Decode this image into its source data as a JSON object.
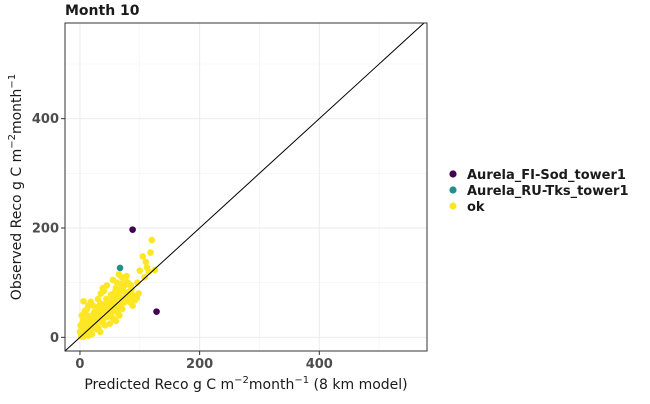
{
  "chart_data": {
    "type": "scatter",
    "title": "Month 10",
    "xlabel": {
      "prefix": "Predicted Reco g C m",
      "sup1": "−2",
      "mid": "month",
      "sup2": "−1",
      "suffix": " (8 km model)"
    },
    "ylabel": {
      "prefix": "Observed Reco g C m",
      "sup1": "−2",
      "mid": "month",
      "sup2": "−1",
      "suffix": ""
    },
    "xlim": [
      -25,
      580
    ],
    "ylim": [
      -25,
      575
    ],
    "xticks": [
      0,
      200,
      400
    ],
    "yticks": [
      0,
      200,
      400
    ],
    "grid": true,
    "legend_position": "right",
    "reference_line": "1:1",
    "colors": {
      "Aurela_FI-Sod_tower1": "#440154",
      "Aurela_RU-Tks_tower1": "#21908C",
      "ok": "#FDE725"
    },
    "series": [
      {
        "name": "Aurela_FI-Sod_tower1",
        "points": [
          [
            88,
            197
          ],
          [
            128,
            47
          ]
        ]
      },
      {
        "name": "Aurela_RU-Tks_tower1",
        "points": [
          [
            67,
            127
          ]
        ]
      },
      {
        "name": "ok",
        "points": [
          [
            2,
            2
          ],
          [
            4,
            6
          ],
          [
            5,
            1
          ],
          [
            6,
            10
          ],
          [
            8,
            4
          ],
          [
            3,
            14
          ],
          [
            10,
            8
          ],
          [
            12,
            15
          ],
          [
            14,
            3
          ],
          [
            15,
            20
          ],
          [
            7,
            18
          ],
          [
            9,
            25
          ],
          [
            16,
            12
          ],
          [
            18,
            28
          ],
          [
            20,
            6
          ],
          [
            22,
            18
          ],
          [
            24,
            32
          ],
          [
            5,
            30
          ],
          [
            11,
            35
          ],
          [
            13,
            22
          ],
          [
            25,
            40
          ],
          [
            28,
            15
          ],
          [
            30,
            45
          ],
          [
            26,
            26
          ],
          [
            32,
            36
          ],
          [
            34,
            10
          ],
          [
            36,
            50
          ],
          [
            38,
            30
          ],
          [
            40,
            60
          ],
          [
            42,
            22
          ],
          [
            44,
            48
          ],
          [
            46,
            55
          ],
          [
            48,
            38
          ],
          [
            50,
            62
          ],
          [
            52,
            42
          ],
          [
            54,
            70
          ],
          [
            56,
            50
          ],
          [
            58,
            66
          ],
          [
            60,
            30
          ],
          [
            62,
            78
          ],
          [
            64,
            56
          ],
          [
            66,
            82
          ],
          [
            68,
            60
          ],
          [
            70,
            90
          ],
          [
            72,
            72
          ],
          [
            74,
            64
          ],
          [
            76,
            96
          ],
          [
            78,
            80
          ],
          [
            80,
            100
          ],
          [
            82,
            70
          ],
          [
            84,
            64
          ],
          [
            86,
            88
          ],
          [
            88,
            58
          ],
          [
            90,
            76
          ],
          [
            6,
            66
          ],
          [
            8,
            48
          ],
          [
            18,
            65
          ],
          [
            20,
            40
          ],
          [
            30,
            70
          ],
          [
            35,
            80
          ],
          [
            40,
            85
          ],
          [
            45,
            95
          ],
          [
            55,
            105
          ],
          [
            60,
            90
          ],
          [
            65,
            115
          ],
          [
            70,
            110
          ],
          [
            75,
            108
          ],
          [
            85,
            95
          ],
          [
            92,
            68
          ],
          [
            50,
            25
          ],
          [
            36,
            60
          ],
          [
            28,
            55
          ],
          [
            24,
            46
          ],
          [
            16,
            38
          ],
          [
            12,
            52
          ],
          [
            22,
            58
          ],
          [
            44,
            70
          ],
          [
            58,
            82
          ],
          [
            62,
            100
          ],
          [
            78,
            112
          ],
          [
            98,
            80
          ],
          [
            52,
            78
          ],
          [
            38,
            90
          ],
          [
            34,
            62
          ],
          [
            56,
            34
          ],
          [
            3,
            40
          ],
          [
            1,
            22
          ],
          [
            0,
            10
          ],
          [
            17,
            5
          ],
          [
            21,
            30
          ],
          [
            27,
            20
          ],
          [
            33,
            42
          ],
          [
            41,
            48
          ],
          [
            47,
            65
          ],
          [
            53,
            58
          ],
          [
            59,
            75
          ],
          [
            63,
            45
          ],
          [
            71,
            52
          ],
          [
            77,
            68
          ],
          [
            83,
            84
          ],
          [
            69,
            98
          ],
          [
            73,
            85
          ],
          [
            80,
            75
          ],
          [
            87,
            78
          ],
          [
            95,
            72
          ],
          [
            110,
            138
          ],
          [
            115,
            120
          ],
          [
            118,
            155
          ],
          [
            120,
            178
          ],
          [
            125,
            123
          ],
          [
            105,
            148
          ],
          [
            100,
            122
          ],
          [
            112,
            128
          ],
          [
            108,
            110
          ],
          [
            96,
            100
          ],
          [
            66,
            40
          ],
          [
            42,
            36
          ],
          [
            48,
            52
          ],
          [
            57,
            62
          ],
          [
            67,
            72
          ],
          [
            10,
            42
          ],
          [
            14,
            58
          ],
          [
            29,
            33
          ],
          [
            37,
            28
          ],
          [
            31,
            18
          ]
        ]
      }
    ]
  }
}
